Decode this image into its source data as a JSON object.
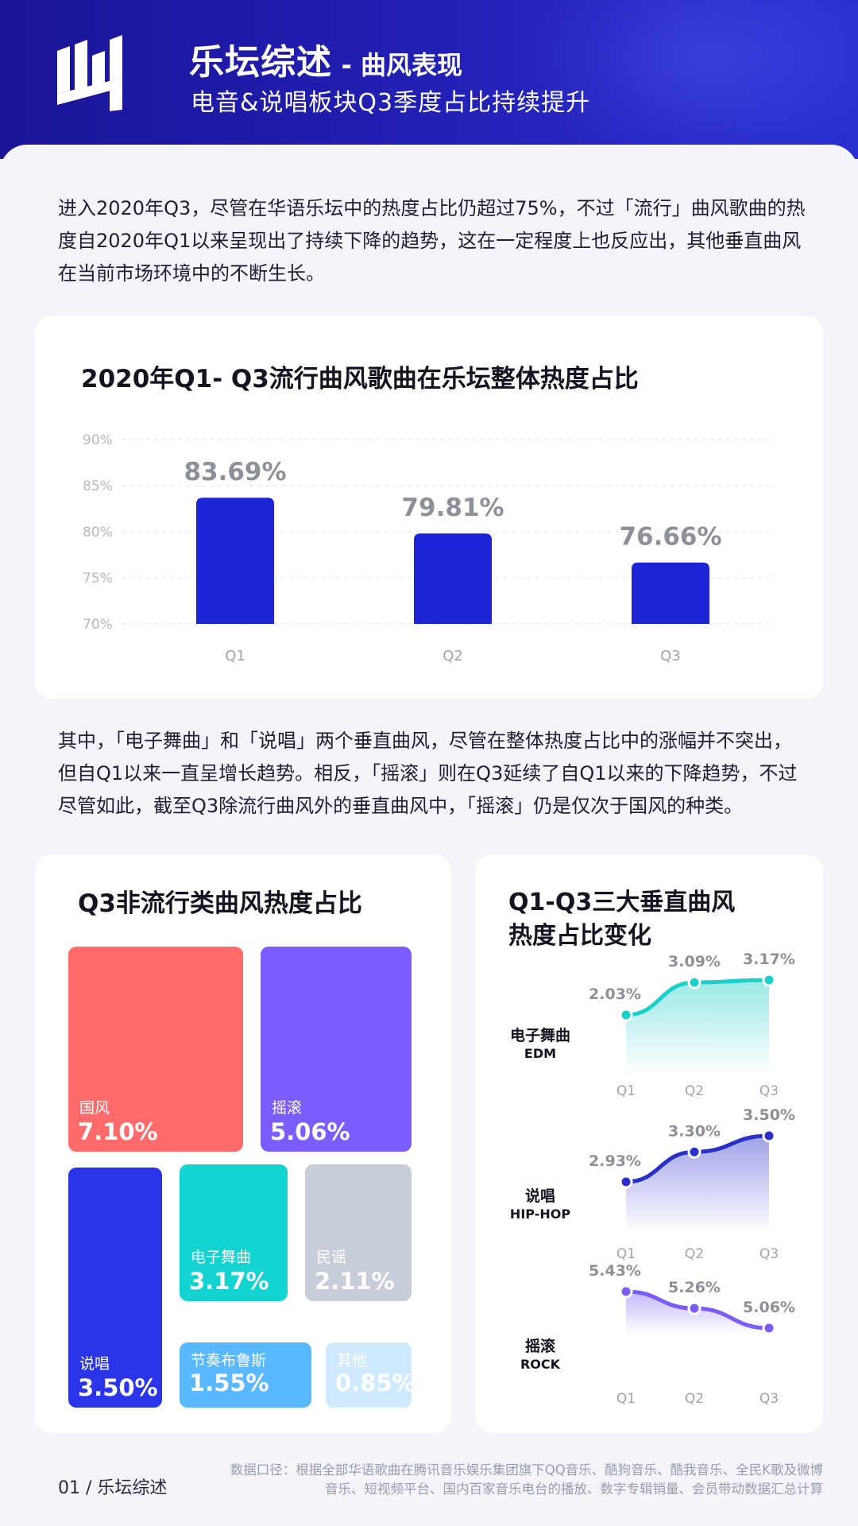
{
  "header": {
    "title": "乐坛综述",
    "title_suffix": "- 曲风表现",
    "subtitle": "电音&说唱板块Q3季度占比持续提升",
    "brand_color": "#1f1aa8"
  },
  "intro_paragraph": "进入2020年Q3，尽管在华语乐坛中的热度占比仍超过75%，不过「流行」曲风歌曲的热度自2020年Q1以来呈现出了持续下降的趋势，这在一定程度上也反应出，其他垂直曲风在当前市场环境中的不断生长。",
  "middle_paragraph": "其中，「电子舞曲」和「说唱」两个垂直曲风，尽管在整体热度占比中的涨幅并不突出， 但自Q1以来一直呈增长趋势。相反，「摇滚」则在Q3延续了自Q1以来的下降趋势，不过尽管如此，截至Q3除流行曲风外的垂直曲风中，「摇滚」仍是仅次于国风的种类。",
  "chart_data": [
    {
      "type": "bar",
      "title": "2020年Q1- Q3流行曲风歌曲在乐坛整体热度占比",
      "categories": [
        "Q1",
        "Q2",
        "Q3"
      ],
      "values": [
        83.69,
        79.81,
        76.66
      ],
      "data_labels": [
        "83.69%",
        "79.81%",
        "76.66%"
      ],
      "ylim": [
        70,
        90
      ],
      "yticks": [
        "90%",
        "85%",
        "80%",
        "75%",
        "70%"
      ],
      "ytick_values": [
        90,
        85,
        80,
        75,
        70
      ],
      "grid": true,
      "bar_color": "#1d24d6"
    },
    {
      "type": "treemap",
      "title": "Q3非流行类曲风热度占比",
      "items": [
        {
          "name": "国风",
          "value": 7.1,
          "label": "7.10%",
          "color": "#ff6b6b"
        },
        {
          "name": "摇滚",
          "value": 5.06,
          "label": "5.06%",
          "color": "#7c5cff"
        },
        {
          "name": "说唱",
          "value": 3.5,
          "label": "3.50%",
          "color": "#2a35ea"
        },
        {
          "name": "电子舞曲",
          "value": 3.17,
          "label": "3.17%",
          "color": "#12d3cf"
        },
        {
          "name": "民谣",
          "value": 2.11,
          "label": "2.11%",
          "color": "#c8ced8"
        },
        {
          "name": "节奏布鲁斯",
          "value": 1.55,
          "label": "1.55%",
          "color": "#5ab8ff"
        },
        {
          "name": "其他",
          "value": 0.85,
          "label": "0.85%",
          "color": "#cfe9ff"
        }
      ]
    },
    {
      "type": "line",
      "title": "Q1-Q3三大垂直曲风热度占比变化",
      "title_line1": "Q1-Q3三大垂直曲风",
      "title_line2": "热度占比变化",
      "categories": [
        "Q1",
        "Q2",
        "Q3"
      ],
      "series": [
        {
          "name": "电子舞曲",
          "name_en": "EDM",
          "values": [
            2.03,
            3.09,
            3.17
          ],
          "labels": [
            "2.03%",
            "3.09%",
            "3.17%"
          ],
          "color": "#1ccfc8"
        },
        {
          "name": "说唱",
          "name_en": "HIP-HOP",
          "values": [
            2.93,
            3.3,
            3.5
          ],
          "labels": [
            "2.93%",
            "3.30%",
            "3.50%"
          ],
          "color": "#2a2fc8"
        },
        {
          "name": "摇滚",
          "name_en": "ROCK",
          "values": [
            5.43,
            5.26,
            5.06
          ],
          "labels": [
            "5.43%",
            "5.26%",
            "5.06%"
          ],
          "color": "#7b5cf5"
        }
      ]
    }
  ],
  "footer": {
    "page": "01 / 乐坛综述",
    "note": "数据口径：根据全部华语歌曲在腾讯音乐娱乐集团旗下QQ音乐、酷狗音乐、酷我音乐、全民K歌及微博音乐、短视频平台、国内百家音乐电台的播放、数字专辑销量、会员带动数据汇总计算"
  }
}
